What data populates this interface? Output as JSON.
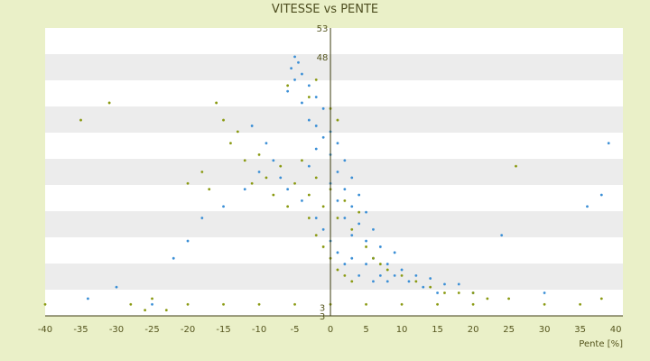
{
  "chart_data": {
    "type": "scatter",
    "title": "VITESSE vs PENTE",
    "xlabel": "Pente [%]",
    "ylabel": "",
    "xlim": [
      -40,
      41
    ],
    "ylim": [
      3,
      53
    ],
    "xticks": [
      "-40",
      "-35",
      "-30",
      "-25",
      "-20",
      "-15",
      "-10",
      "-5",
      "0",
      "5",
      "10",
      "15",
      "20",
      "25",
      "30",
      "35",
      "40"
    ],
    "yticks_visible": [
      "53",
      "48",
      "3",
      "3"
    ],
    "grid": "horizontal bands",
    "legend": "none",
    "colors": {
      "background": "#eaf0c8",
      "plot_band_light": "#ffffff",
      "plot_band_dark": "#ececec",
      "series_a": "#3b8fd6",
      "series_b": "#8a9a12",
      "axis": "#3d3d10"
    },
    "series": [
      {
        "color": "#3b8fd6",
        "points": [
          [
            -5,
            48
          ],
          [
            -4.5,
            47
          ],
          [
            -5.5,
            46
          ],
          [
            -4,
            45
          ],
          [
            -5,
            44
          ],
          [
            -3,
            43
          ],
          [
            -6,
            42
          ],
          [
            -2,
            41
          ],
          [
            -4,
            40
          ],
          [
            -1,
            39
          ],
          [
            -3,
            37
          ],
          [
            -2,
            36
          ],
          [
            0,
            35
          ],
          [
            -1,
            34
          ],
          [
            1,
            33
          ],
          [
            -2,
            32
          ],
          [
            0,
            31
          ],
          [
            2,
            30
          ],
          [
            -3,
            29
          ],
          [
            1,
            28
          ],
          [
            3,
            27
          ],
          [
            0,
            26
          ],
          [
            2,
            25
          ],
          [
            4,
            24
          ],
          [
            1,
            23
          ],
          [
            3,
            22
          ],
          [
            5,
            21
          ],
          [
            2,
            20
          ],
          [
            4,
            19
          ],
          [
            6,
            18
          ],
          [
            3,
            17
          ],
          [
            5,
            16
          ],
          [
            7,
            15
          ],
          [
            9,
            14
          ],
          [
            6,
            13
          ],
          [
            8,
            12
          ],
          [
            10,
            11
          ],
          [
            12,
            10
          ],
          [
            14,
            9.5
          ],
          [
            11,
            9
          ],
          [
            16,
            8.5
          ],
          [
            13,
            8
          ],
          [
            18,
            8.5
          ],
          [
            -8,
            30
          ],
          [
            -10,
            28
          ],
          [
            -12,
            25
          ],
          [
            -15,
            22
          ],
          [
            -18,
            20
          ],
          [
            -20,
            16
          ],
          [
            -22,
            13
          ],
          [
            -30,
            8
          ],
          [
            -34,
            6
          ],
          [
            -25,
            5
          ],
          [
            36,
            22
          ],
          [
            38,
            24
          ],
          [
            39,
            33
          ],
          [
            24,
            17
          ],
          [
            30,
            7
          ],
          [
            -6,
            25
          ],
          [
            -4,
            23
          ],
          [
            -7,
            27
          ],
          [
            -9,
            33
          ],
          [
            -11,
            36
          ],
          [
            2,
            12
          ],
          [
            4,
            10
          ],
          [
            6,
            9
          ],
          [
            8,
            9
          ],
          [
            15,
            7
          ],
          [
            20,
            7
          ],
          [
            -2,
            20
          ],
          [
            -1,
            18
          ],
          [
            0,
            16
          ],
          [
            1,
            14
          ],
          [
            3,
            13
          ],
          [
            5,
            12
          ],
          [
            7,
            10
          ],
          [
            9,
            10
          ]
        ]
      },
      {
        "color": "#8a9a12",
        "points": [
          [
            -35,
            37
          ],
          [
            -31,
            40
          ],
          [
            -28,
            5
          ],
          [
            -26,
            4
          ],
          [
            -23,
            4
          ],
          [
            -20,
            26
          ],
          [
            -18,
            28
          ],
          [
            -17,
            25
          ],
          [
            -16,
            40
          ],
          [
            -15,
            37
          ],
          [
            -14,
            33
          ],
          [
            -13,
            35
          ],
          [
            -12,
            30
          ],
          [
            -11,
            26
          ],
          [
            -10,
            31
          ],
          [
            -9,
            27
          ],
          [
            -8,
            24
          ],
          [
            -7,
            29
          ],
          [
            -6,
            22
          ],
          [
            -5,
            26
          ],
          [
            -4,
            30
          ],
          [
            -3,
            24
          ],
          [
            -2,
            27
          ],
          [
            -1,
            22
          ],
          [
            0,
            25
          ],
          [
            1,
            20
          ],
          [
            2,
            23
          ],
          [
            3,
            18
          ],
          [
            4,
            21
          ],
          [
            5,
            15
          ],
          [
            6,
            13
          ],
          [
            7,
            12
          ],
          [
            8,
            11
          ],
          [
            10,
            10
          ],
          [
            12,
            9
          ],
          [
            14,
            8
          ],
          [
            16,
            7
          ],
          [
            18,
            7
          ],
          [
            20,
            7
          ],
          [
            22,
            6
          ],
          [
            25,
            6
          ],
          [
            26,
            29
          ],
          [
            30,
            5
          ],
          [
            35,
            5
          ],
          [
            38,
            6
          ],
          [
            -40,
            5
          ],
          [
            -25,
            6
          ],
          [
            -20,
            5
          ],
          [
            -15,
            5
          ],
          [
            -10,
            5
          ],
          [
            -5,
            5
          ],
          [
            0,
            5
          ],
          [
            5,
            5
          ],
          [
            10,
            5
          ],
          [
            15,
            5
          ],
          [
            20,
            5
          ],
          [
            -3,
            20
          ],
          [
            -2,
            17
          ],
          [
            -1,
            15
          ],
          [
            0,
            13
          ],
          [
            1,
            11
          ],
          [
            2,
            10
          ],
          [
            3,
            9
          ],
          [
            -6,
            43
          ],
          [
            -3,
            41
          ],
          [
            -2,
            44
          ],
          [
            0,
            39
          ],
          [
            1,
            37
          ]
        ]
      }
    ]
  }
}
